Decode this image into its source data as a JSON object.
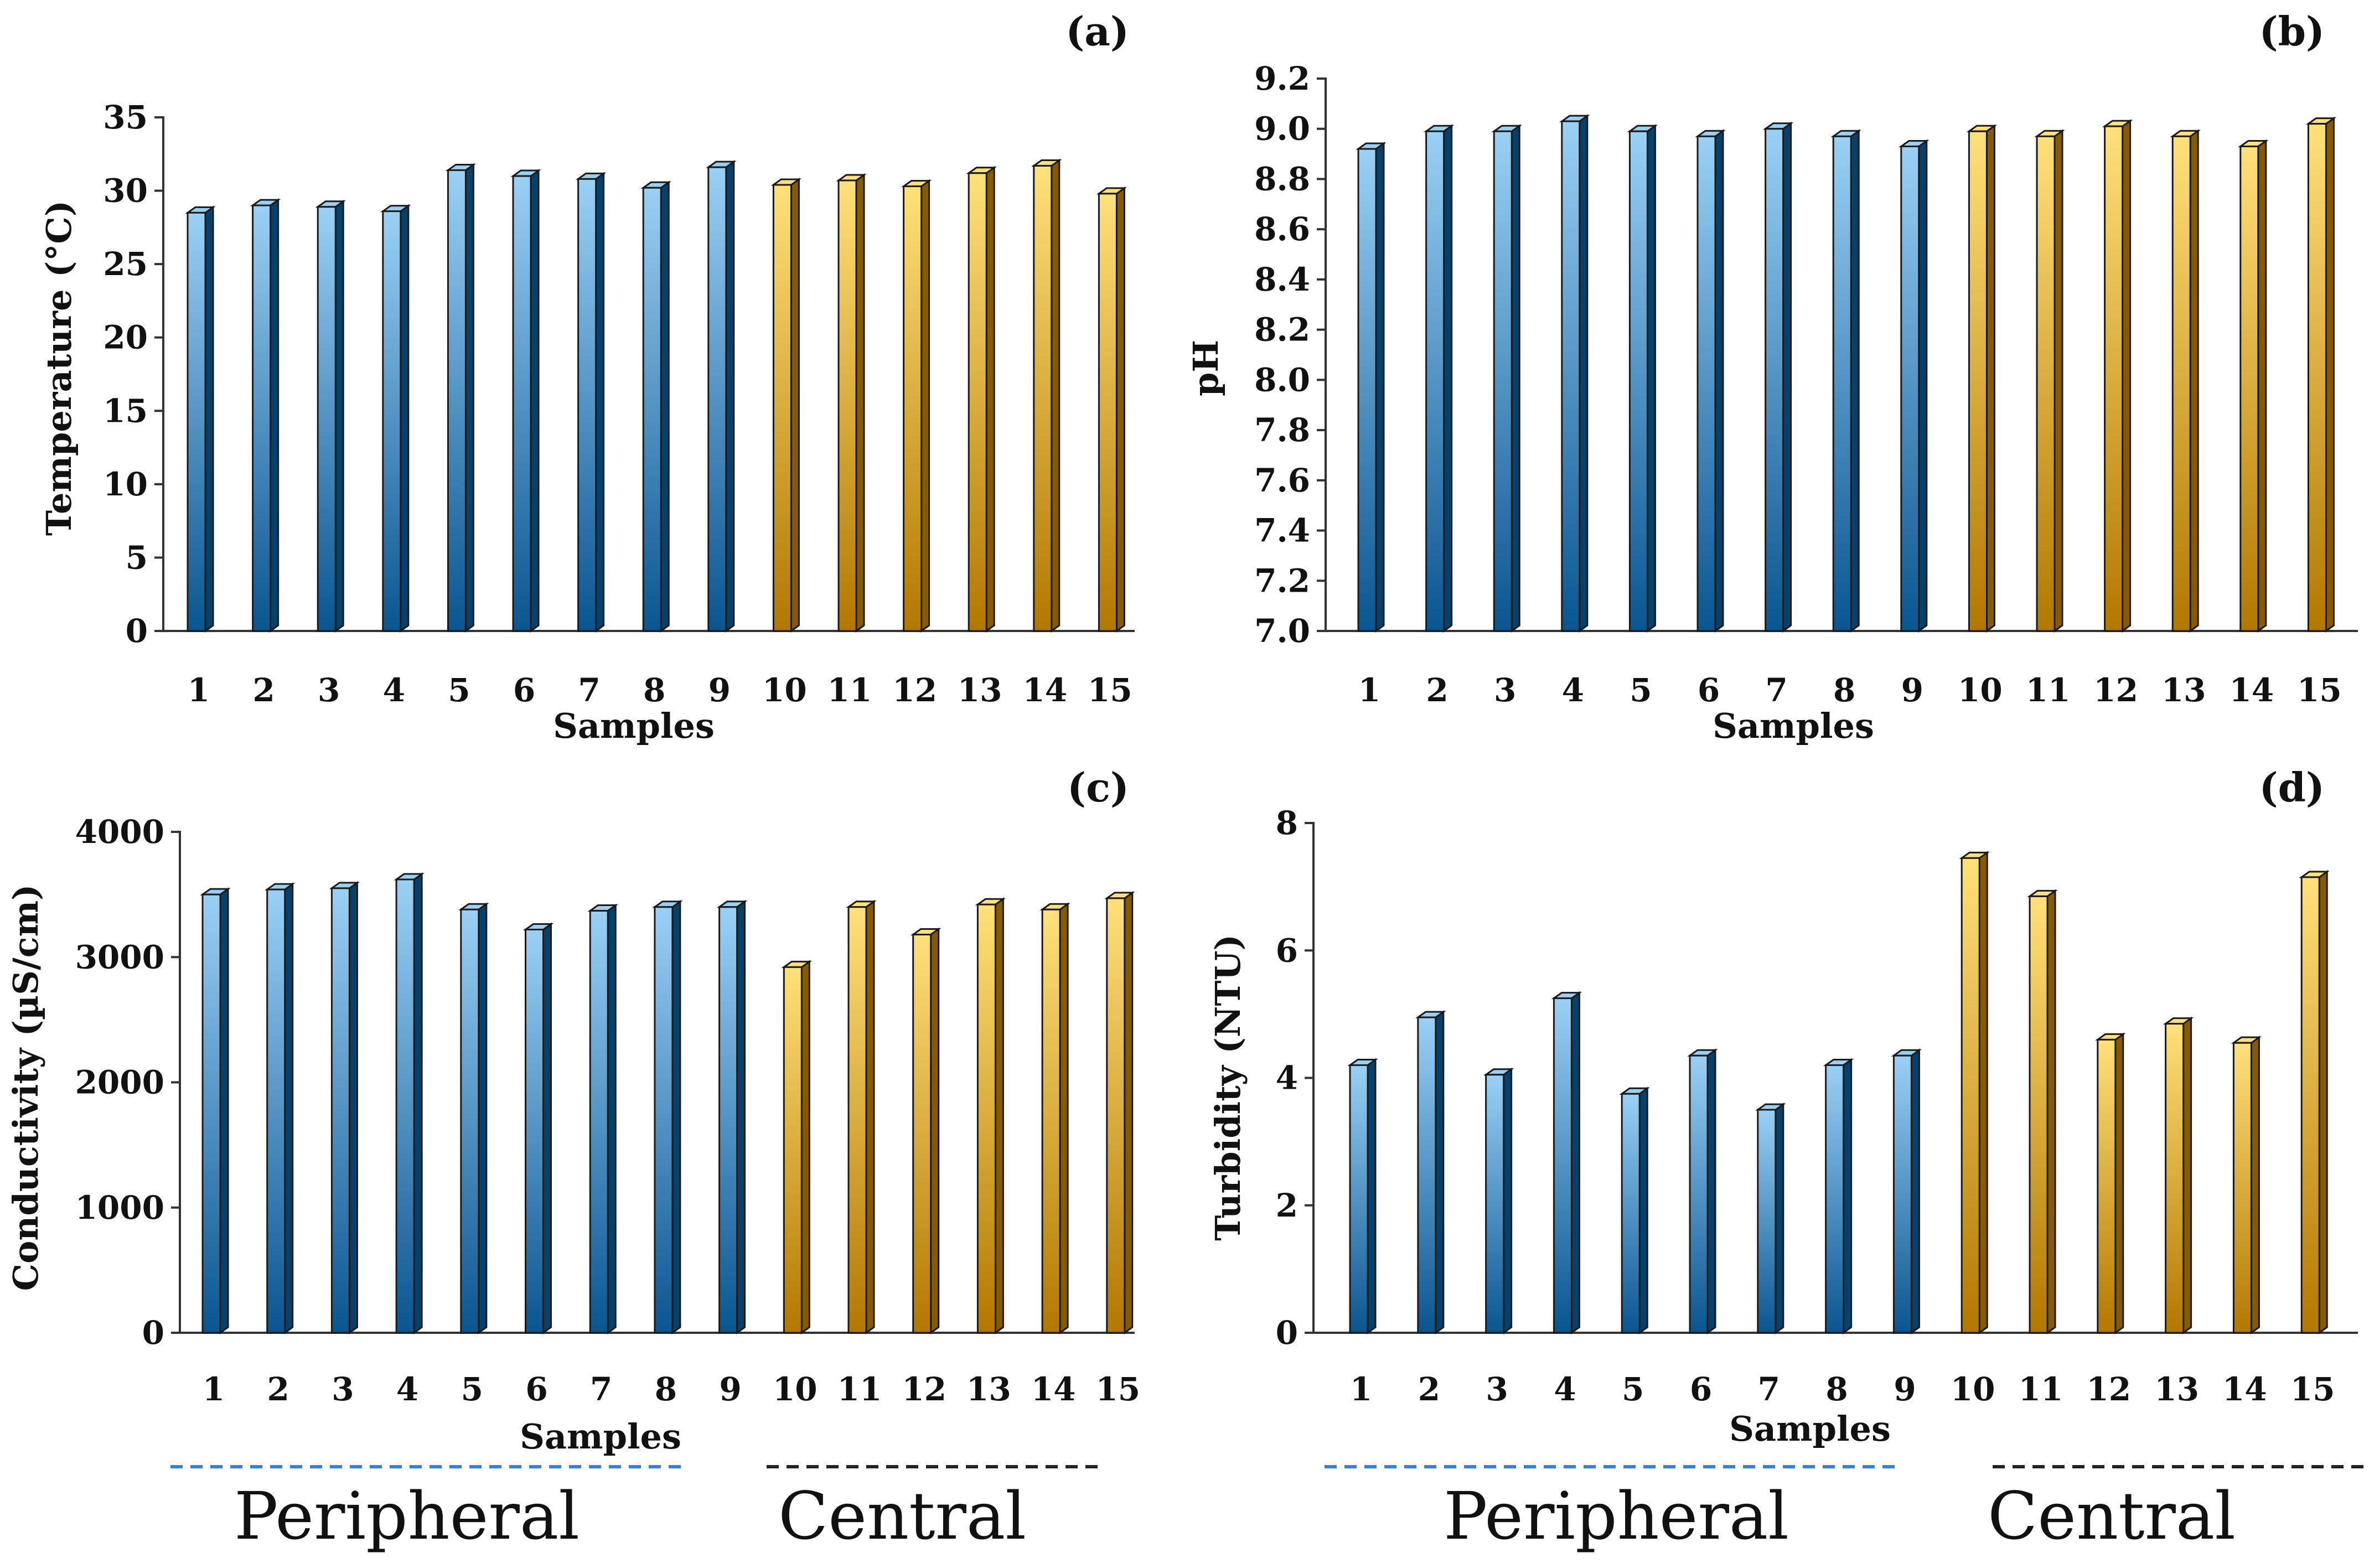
{
  "colors": {
    "peripheral_light": "#9bd0f5",
    "peripheral_dark": "#0a5590",
    "central_light": "#ffe07a",
    "central_dark": "#b27800",
    "peripheral_dash": "#3a7fd0",
    "central_dash": "#222222"
  },
  "chart_data": [
    {
      "id": "a",
      "type": "bar",
      "panel_label": "(a)",
      "title": "",
      "xlabel": "Samples",
      "ylabel": "Temperature (°C)",
      "categories": [
        "1",
        "2",
        "3",
        "4",
        "5",
        "6",
        "7",
        "8",
        "9",
        "10",
        "11",
        "12",
        "13",
        "14",
        "15"
      ],
      "values": [
        28.5,
        29.0,
        28.9,
        28.6,
        31.4,
        31.0,
        30.8,
        30.2,
        31.6,
        30.4,
        30.7,
        30.3,
        31.2,
        31.7,
        29.8
      ],
      "groups": [
        "peripheral",
        "peripheral",
        "peripheral",
        "peripheral",
        "peripheral",
        "peripheral",
        "peripheral",
        "peripheral",
        "peripheral",
        "central",
        "central",
        "central",
        "central",
        "central",
        "central"
      ],
      "ylim": [
        0,
        35
      ],
      "yticks": [
        0,
        5,
        10,
        15,
        20,
        25,
        30,
        35
      ],
      "ytick_labels": [
        "0",
        "5",
        "10",
        "15",
        "20",
        "25",
        "30",
        "35"
      ],
      "grid": false
    },
    {
      "id": "b",
      "type": "bar",
      "panel_label": "(b)",
      "title": "",
      "xlabel": "Samples",
      "ylabel": "pH",
      "categories": [
        "1",
        "2",
        "3",
        "4",
        "5",
        "6",
        "7",
        "8",
        "9",
        "10",
        "11",
        "12",
        "13",
        "14",
        "15"
      ],
      "values": [
        8.92,
        8.99,
        8.99,
        9.03,
        8.99,
        8.97,
        9.0,
        8.97,
        8.93,
        8.99,
        8.97,
        9.01,
        8.97,
        8.93,
        9.02
      ],
      "groups": [
        "peripheral",
        "peripheral",
        "peripheral",
        "peripheral",
        "peripheral",
        "peripheral",
        "peripheral",
        "peripheral",
        "peripheral",
        "central",
        "central",
        "central",
        "central",
        "central",
        "central"
      ],
      "ylim": [
        7.0,
        9.2
      ],
      "yticks": [
        7.0,
        7.2,
        7.4,
        7.6,
        7.8,
        8.0,
        8.2,
        8.4,
        8.6,
        8.8,
        9.0,
        9.2
      ],
      "ytick_labels": [
        "7.0",
        "7.2",
        "7.4",
        "7.6",
        "7.8",
        "8.0",
        "8.2",
        "8.4",
        "8.6",
        "8.8",
        "9.0",
        "9.2"
      ],
      "grid": false
    },
    {
      "id": "c",
      "type": "bar",
      "panel_label": "(c)",
      "title": "",
      "xlabel": "Samples",
      "ylabel": "Conductivity (µS/cm)",
      "categories": [
        "1",
        "2",
        "3",
        "4",
        "5",
        "6",
        "7",
        "8",
        "9",
        "10",
        "11",
        "12",
        "13",
        "14",
        "15"
      ],
      "values": [
        3500,
        3540,
        3550,
        3620,
        3380,
        3220,
        3370,
        3400,
        3400,
        2920,
        3400,
        3180,
        3420,
        3380,
        3470
      ],
      "groups": [
        "peripheral",
        "peripheral",
        "peripheral",
        "peripheral",
        "peripheral",
        "peripheral",
        "peripheral",
        "peripheral",
        "peripheral",
        "central",
        "central",
        "central",
        "central",
        "central",
        "central"
      ],
      "ylim": [
        0,
        4000
      ],
      "yticks": [
        0,
        1000,
        2000,
        3000,
        4000
      ],
      "ytick_labels": [
        "0",
        "1000",
        "2000",
        "3000",
        "4000"
      ],
      "grid": false
    },
    {
      "id": "d",
      "type": "bar",
      "panel_label": "(d)",
      "title": "",
      "xlabel": "Samples",
      "ylabel": "Turbidity (NTU)",
      "categories": [
        "1",
        "2",
        "3",
        "4",
        "5",
        "6",
        "7",
        "8",
        "9",
        "10",
        "11",
        "12",
        "13",
        "14",
        "15"
      ],
      "values": [
        4.2,
        4.95,
        4.05,
        5.25,
        3.75,
        4.35,
        3.5,
        4.2,
        4.35,
        7.45,
        6.85,
        4.6,
        4.85,
        4.55,
        7.15
      ],
      "groups": [
        "peripheral",
        "peripheral",
        "peripheral",
        "peripheral",
        "peripheral",
        "peripheral",
        "peripheral",
        "peripheral",
        "peripheral",
        "central",
        "central",
        "central",
        "central",
        "central",
        "central"
      ],
      "ylim": [
        0,
        8
      ],
      "yticks": [
        0,
        2,
        4,
        6,
        8
      ],
      "ytick_labels": [
        "0",
        "2",
        "4",
        "6",
        "8"
      ],
      "grid": false
    }
  ],
  "group_legend": {
    "left": {
      "peripheral": "Peripheral",
      "central": "Central"
    },
    "right": {
      "peripheral": "Peripheral",
      "central": "Central"
    }
  }
}
